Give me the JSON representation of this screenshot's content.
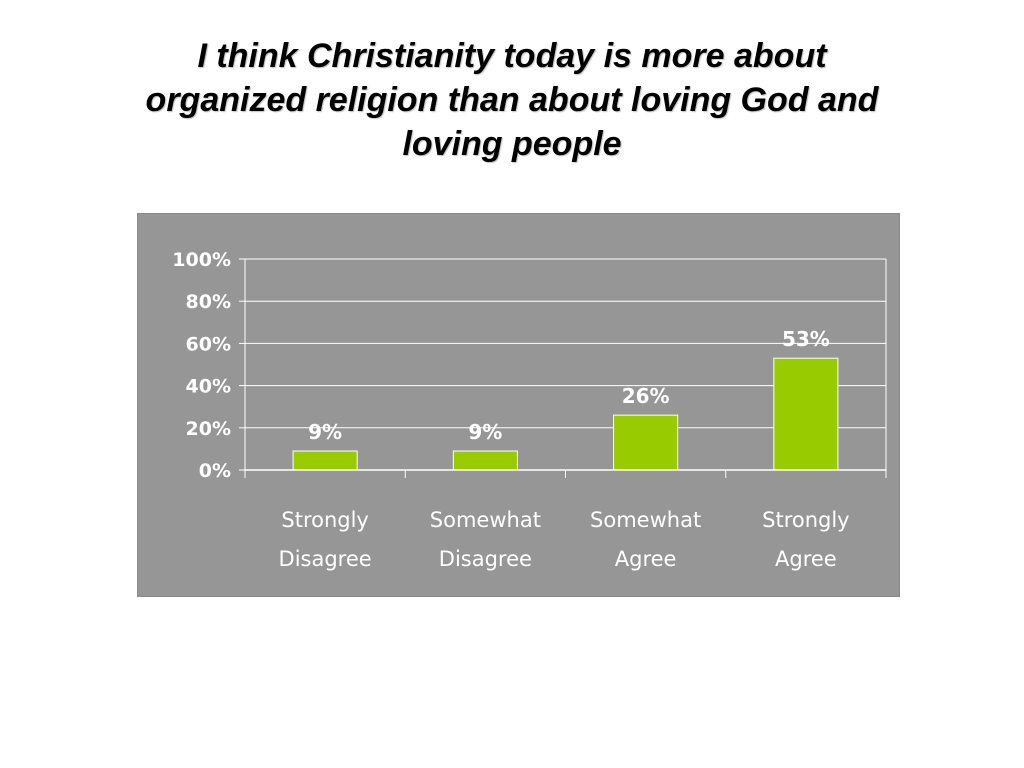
{
  "title_lines": [
    "I think Christianity today is more about",
    "organized religion than about loving God and",
    "loving people"
  ],
  "colors": {
    "panel_background": "#969696",
    "bar_fill": "#99cc00",
    "grid_line": "#ffffff",
    "text": "#ffffff"
  },
  "chart_data": {
    "type": "bar",
    "categories": [
      [
        "Strongly",
        "Disagree"
      ],
      [
        "Somewhat",
        "Disagree"
      ],
      [
        "Somewhat",
        "Agree"
      ],
      [
        "Strongly",
        "Agree"
      ]
    ],
    "values": [
      9,
      9,
      26,
      53
    ],
    "data_labels": [
      "9%",
      "9%",
      "26%",
      "53%"
    ],
    "y_ticks": [
      0,
      20,
      40,
      60,
      80,
      100
    ],
    "y_tick_labels": [
      "0%",
      "20%",
      "40%",
      "60%",
      "80%",
      "100%"
    ],
    "ylim": [
      0,
      100
    ],
    "grid": true,
    "legend": "none"
  }
}
